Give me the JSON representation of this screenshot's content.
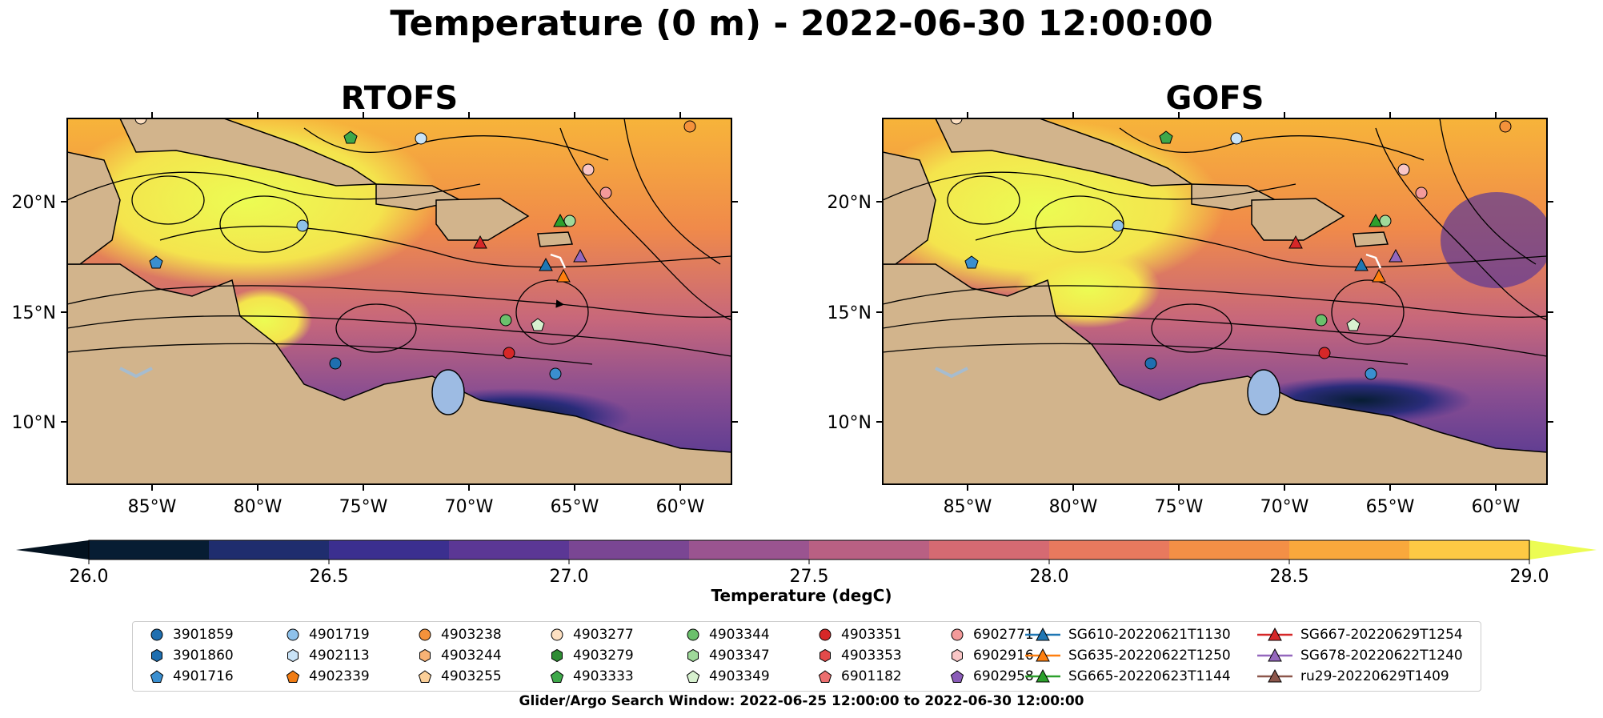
{
  "title": "Temperature (0 m) - 2022-06-30 12:00:00",
  "panels": [
    {
      "title": "RTOFS"
    },
    {
      "title": "GOFS"
    }
  ],
  "map": {
    "lon_ticks": [
      "85°W",
      "80°W",
      "75°W",
      "70°W",
      "65°W",
      "60°W"
    ],
    "lat_ticks": [
      "20°N",
      "15°N",
      "10°N"
    ]
  },
  "colorbar": {
    "label": "Temperature (degC)",
    "ticks": [
      "26.0",
      "26.5",
      "27.0",
      "27.5",
      "28.0",
      "28.5",
      "29.0"
    ],
    "colors": [
      "#071d33",
      "#1f2d6e",
      "#3b2f8f",
      "#5b3795",
      "#7a4693",
      "#9a5490",
      "#b96083",
      "#d56a72",
      "#e8795e",
      "#f38f46",
      "#f9a83c",
      "#fdc944"
    ],
    "under_color": "#03121f",
    "over_color": "#ecfc53"
  },
  "legend": {
    "items": [
      {
        "label": "3901859",
        "marker": "circle",
        "color": "#1f6fb0"
      },
      {
        "label": "3901860",
        "marker": "hexagon",
        "color": "#1f6fb0"
      },
      {
        "label": "4901716",
        "marker": "pentagon",
        "color": "#3a8fd0"
      },
      {
        "label": "4901719",
        "marker": "circle",
        "color": "#8ec1ea"
      },
      {
        "label": "4902113",
        "marker": "hexagon",
        "color": "#c9e3f7"
      },
      {
        "label": "4902339",
        "marker": "pentagon",
        "color": "#f07c14"
      },
      {
        "label": "4903238",
        "marker": "circle",
        "color": "#f5923b"
      },
      {
        "label": "4903244",
        "marker": "hexagon",
        "color": "#f8b275"
      },
      {
        "label": "4903255",
        "marker": "pentagon",
        "color": "#fbcf98"
      },
      {
        "label": "4903277",
        "marker": "circle",
        "color": "#fde0c2"
      },
      {
        "label": "4903279",
        "marker": "hexagon",
        "color": "#2e8c34"
      },
      {
        "label": "4903333",
        "marker": "pentagon",
        "color": "#3ea84a"
      },
      {
        "label": "4903344",
        "marker": "circle",
        "color": "#6bc06c"
      },
      {
        "label": "4903347",
        "marker": "hexagon",
        "color": "#9fd99a"
      },
      {
        "label": "4903349",
        "marker": "pentagon",
        "color": "#d7f1cf"
      },
      {
        "label": "4903351",
        "marker": "circle",
        "color": "#d62728"
      },
      {
        "label": "4903353",
        "marker": "hexagon",
        "color": "#e34a4a"
      },
      {
        "label": "6901182",
        "marker": "pentagon",
        "color": "#ec6f6f"
      },
      {
        "label": "6902771",
        "marker": "circle",
        "color": "#f39a9a"
      },
      {
        "label": "6902916",
        "marker": "hexagon",
        "color": "#f9c6c6"
      },
      {
        "label": "6902958",
        "marker": "pentagon",
        "color": "#8a5cb8"
      },
      {
        "label": "SG610-20220621T1130",
        "marker": "triangle-line",
        "color": "#1f77b4"
      },
      {
        "label": "SG635-20220622T1250",
        "marker": "triangle-line",
        "color": "#ff7f0e"
      },
      {
        "label": "SG665-20220623T1144",
        "marker": "triangle-line",
        "color": "#2ca02c"
      },
      {
        "label": "SG667-20220629T1254",
        "marker": "triangle-line",
        "color": "#d62728"
      },
      {
        "label": "SG678-20220622T1240",
        "marker": "triangle-line",
        "color": "#9467bd"
      },
      {
        "label": "ru29-20220629T1409",
        "marker": "triangle-line",
        "color": "#8c564b"
      }
    ]
  },
  "search_window": "Glider/Argo Search Window: 2022-06-25 12:00:00 to 2022-06-30 12:00:00",
  "colors": {
    "land": "#d2b48c",
    "lake": "#9dbbe3",
    "river": "#a6bccf"
  }
}
